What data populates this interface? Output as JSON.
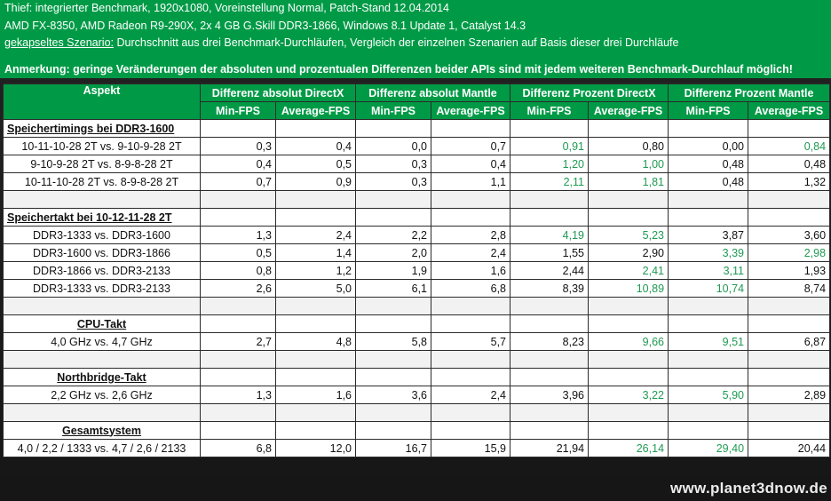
{
  "info": {
    "line1": "Thief: integrierter Benchmark, 1920x1080, Voreinstellung Normal, Patch-Stand 12.04.2014",
    "line2": "AMD FX-8350, AMD Radeon R9-290X, 2x 4 GB G.Skill DDR3-1866, Windows 8.1 Update 1, Catalyst 14.3",
    "line3_label": "gekapseltes Szenario:",
    "line3_text": " Durchschnitt aus drei Benchmark-Durchläufen, Vergleich der einzelnen Szenarien auf Basis dieser drei Durchläufe",
    "note": "Anmerkung: geringe Veränderungen der absoluten und prozentualen Differenzen beider APIs sind mit jedem weiteren Benchmark-Durchlauf möglich!"
  },
  "header": {
    "aspect": "Aspekt",
    "groups": [
      "Differenz absolut DirectX",
      "Differenz absolut Mantle",
      "Differenz Prozent DirectX",
      "Differenz Prozent Mantle"
    ],
    "sub": [
      "Min-FPS",
      "Average-FPS",
      "Min-FPS",
      "Average-FPS",
      "Min-FPS",
      "Average-FPS",
      "Min-FPS",
      "Average-FPS"
    ]
  },
  "sections": {
    "s1": {
      "title": "Speichertimings bei DDR3-1600",
      "rows": [
        {
          "label": "10-11-10-28 2T vs. 9-10-9-28 2T",
          "values": [
            "0,3",
            "0,4",
            "0,0",
            "0,7",
            "0,91",
            "0,80",
            "0,00",
            "0,84"
          ]
        },
        {
          "label": "9-10-9-28 2T vs. 8-9-8-28 2T",
          "values": [
            "0,4",
            "0,5",
            "0,3",
            "0,4",
            "1,20",
            "1,00",
            "0,48",
            "0,48"
          ]
        },
        {
          "label": "10-11-10-28 2T vs. 8-9-8-28 2T",
          "values": [
            "0,7",
            "0,9",
            "0,3",
            "1,1",
            "2,11",
            "1,81",
            "0,48",
            "1,32"
          ]
        }
      ]
    },
    "s2": {
      "title": "Speichertakt bei 10-12-11-28 2T",
      "rows": [
        {
          "label": "DDR3-1333 vs. DDR3-1600",
          "values": [
            "1,3",
            "2,4",
            "2,2",
            "2,8",
            "4,19",
            "5,23",
            "3,87",
            "3,60"
          ]
        },
        {
          "label": "DDR3-1600 vs. DDR3-1866",
          "values": [
            "0,5",
            "1,4",
            "2,0",
            "2,4",
            "1,55",
            "2,90",
            "3,39",
            "2,98"
          ]
        },
        {
          "label": "DDR3-1866 vs. DDR3-2133",
          "values": [
            "0,8",
            "1,2",
            "1,9",
            "1,6",
            "2,44",
            "2,41",
            "3,11",
            "1,93"
          ]
        },
        {
          "label": "DDR3-1333 vs. DDR3-2133",
          "values": [
            "2,6",
            "5,0",
            "6,1",
            "6,8",
            "8,39",
            "10,89",
            "10,74",
            "8,74"
          ]
        }
      ]
    },
    "s3": {
      "title": "CPU-Takt",
      "rows": [
        {
          "label": "4,0 GHz vs. 4,7 GHz",
          "values": [
            "2,7",
            "4,8",
            "5,8",
            "5,7",
            "8,23",
            "9,66",
            "9,51",
            "6,87"
          ]
        }
      ]
    },
    "s4": {
      "title": "Northbridge-Takt",
      "rows": [
        {
          "label": "2,2 GHz vs. 2,6 GHz",
          "values": [
            "1,3",
            "1,6",
            "3,6",
            "2,4",
            "3,96",
            "3,22",
            "5,90",
            "2,89"
          ]
        }
      ]
    },
    "s5": {
      "title": "Gesamtsystem",
      "rows": [
        {
          "label": "4,0 / 2,2 / 1333 vs. 4,7 / 2,6 / 2133",
          "values": [
            "6,8",
            "12,0",
            "16,7",
            "15,9",
            "21,94",
            "26,14",
            "29,40",
            "20,44"
          ]
        }
      ]
    }
  },
  "highlight_color": "#1f9a52",
  "watermark": "www.planet3dnow.de"
}
